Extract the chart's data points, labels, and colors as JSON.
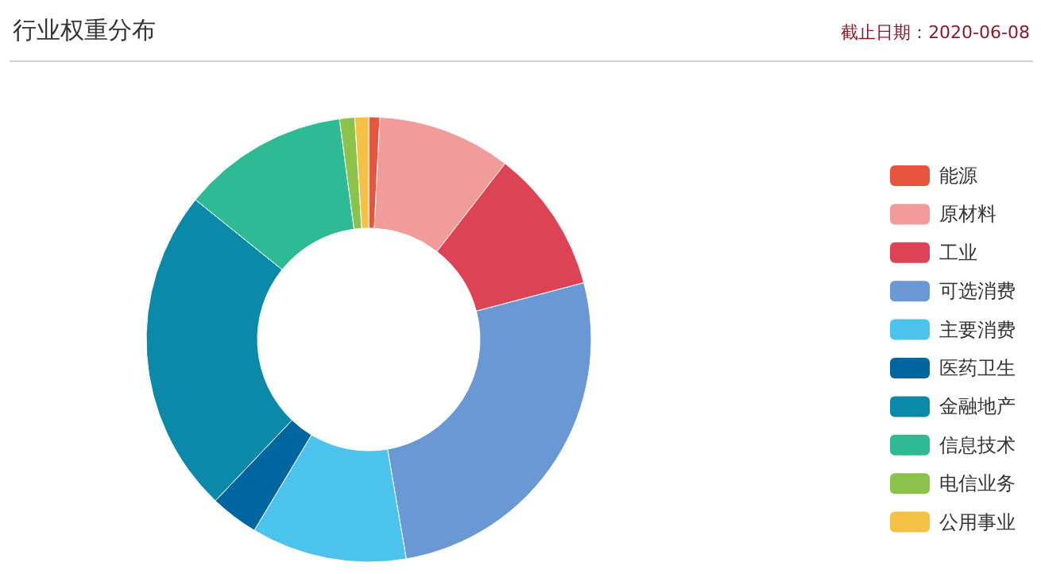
{
  "chart_data": {
    "type": "donut",
    "title": "行业权重分布",
    "subtitle": "截止日期：2020-06-08",
    "categories": [
      "能源",
      "原材料",
      "工业",
      "可选消费",
      "主要消费",
      "医药卫生",
      "金融地产",
      "信息技术",
      "电信业务",
      "公用事业"
    ],
    "values": [
      0.8,
      9.7,
      10.4,
      26.4,
      11.3,
      3.5,
      23.7,
      12.1,
      1.1,
      1.0
    ],
    "colors": [
      "#e8553f",
      "#f29b9b",
      "#dc4455",
      "#6a98d4",
      "#4bc3ec",
      "#0066a0",
      "#0a8aa8",
      "#2fba96",
      "#8bc34a",
      "#f4c046"
    ],
    "legend": "right"
  }
}
